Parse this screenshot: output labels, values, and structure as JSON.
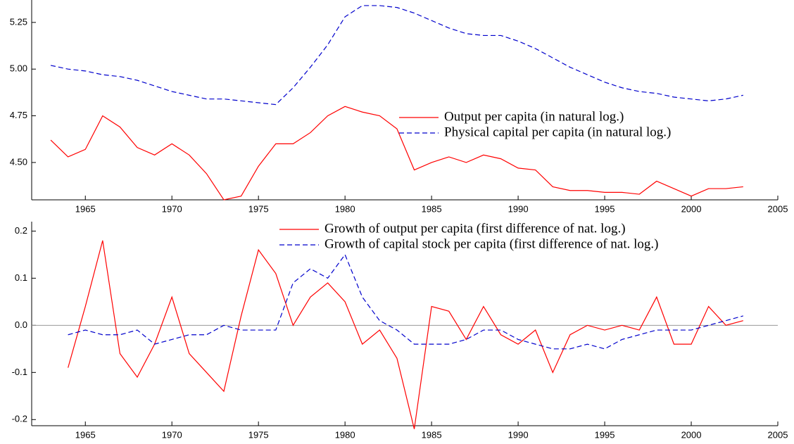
{
  "chart_data": [
    {
      "type": "line",
      "x": [
        1963,
        1964,
        1965,
        1966,
        1967,
        1968,
        1969,
        1970,
        1971,
        1972,
        1973,
        1974,
        1975,
        1976,
        1977,
        1978,
        1979,
        1980,
        1981,
        1982,
        1983,
        1984,
        1985,
        1986,
        1987,
        1988,
        1989,
        1990,
        1991,
        1992,
        1993,
        1994,
        1995,
        1996,
        1997,
        1998,
        1999,
        2000,
        2001,
        2002,
        2003
      ],
      "series": [
        {
          "name": "Output per capita (in natural log.)",
          "color": "#ff0000",
          "dashed": false,
          "values": [
            4.62,
            4.53,
            4.57,
            4.75,
            4.69,
            4.58,
            4.54,
            4.6,
            4.54,
            4.44,
            4.3,
            4.32,
            4.48,
            4.6,
            4.6,
            4.66,
            4.75,
            4.8,
            4.77,
            4.75,
            4.68,
            4.46,
            4.5,
            4.53,
            4.5,
            4.54,
            4.52,
            4.47,
            4.46,
            4.37,
            4.35,
            4.35,
            4.34,
            4.34,
            4.33,
            4.4,
            4.36,
            4.32,
            4.36,
            4.36,
            4.37
          ]
        },
        {
          "name": "Physical capital per capita (in natural log.)",
          "color": "#0000cc",
          "dashed": true,
          "values": [
            5.02,
            5.0,
            4.99,
            4.97,
            4.96,
            4.94,
            4.91,
            4.88,
            4.86,
            4.84,
            4.84,
            4.83,
            4.82,
            4.81,
            4.9,
            5.01,
            5.13,
            5.28,
            5.34,
            5.34,
            5.33,
            5.3,
            5.26,
            5.22,
            5.19,
            5.18,
            5.18,
            5.15,
            5.11,
            5.06,
            5.01,
            4.97,
            4.93,
            4.9,
            4.88,
            4.87,
            4.85,
            4.84,
            4.83,
            4.84,
            4.86
          ]
        }
      ],
      "xlim": [
        1961.9,
        2005
      ],
      "xticks": [
        1965,
        1970,
        1975,
        1980,
        1985,
        1990,
        1995,
        2000,
        2005
      ],
      "ylim": [
        4.3,
        5.37
      ],
      "yticks": [
        {
          "value": 4.5,
          "label": "4.50"
        },
        4.75,
        {
          "value": 5,
          "label": "5.00"
        },
        5.25
      ],
      "legend": "center right",
      "zero_line": false
    },
    {
      "type": "line",
      "x": [
        1964,
        1965,
        1966,
        1967,
        1968,
        1969,
        1970,
        1971,
        1972,
        1973,
        1974,
        1975,
        1976,
        1977,
        1978,
        1979,
        1980,
        1981,
        1982,
        1983,
        1984,
        1985,
        1986,
        1987,
        1988,
        1989,
        1990,
        1991,
        1992,
        1993,
        1994,
        1995,
        1996,
        1997,
        1998,
        1999,
        2000,
        2001,
        2002,
        2003
      ],
      "series": [
        {
          "name": "Growth of output per capita (first difference of nat. log.)",
          "color": "#ff0000",
          "dashed": false,
          "values": [
            -0.09,
            0.04,
            0.18,
            -0.06,
            -0.11,
            -0.04,
            0.06,
            -0.06,
            -0.1,
            -0.14,
            0.02,
            0.16,
            0.11,
            0.0,
            0.06,
            0.09,
            0.05,
            -0.04,
            -0.01,
            -0.07,
            -0.22,
            0.04,
            0.03,
            -0.03,
            0.04,
            -0.02,
            -0.04,
            -0.01,
            -0.1,
            -0.02,
            0.0,
            -0.01,
            0.0,
            -0.01,
            0.06,
            -0.04,
            -0.04,
            0.04,
            0.0,
            0.01
          ]
        },
        {
          "name": "Growth of capital stock per capita (first difference of nat. log.)",
          "color": "#0000cc",
          "dashed": true,
          "values": [
            -0.02,
            -0.01,
            -0.02,
            -0.02,
            -0.01,
            -0.04,
            -0.03,
            -0.02,
            -0.02,
            0.0,
            -0.01,
            -0.01,
            -0.01,
            0.09,
            0.12,
            0.1,
            0.15,
            0.06,
            0.01,
            -0.01,
            -0.04,
            -0.04,
            -0.04,
            -0.03,
            -0.01,
            -0.01,
            -0.03,
            -0.04,
            -0.05,
            -0.05,
            -0.04,
            -0.05,
            -0.03,
            -0.02,
            -0.01,
            -0.01,
            -0.01,
            0.0,
            0.01,
            0.02
          ]
        }
      ],
      "xlim": [
        1961.9,
        2005
      ],
      "xticks": [
        1965,
        1970,
        1975,
        1980,
        1985,
        1990,
        1995,
        2000,
        2005
      ],
      "ylim": [
        -0.213,
        0.22
      ],
      "yticks": [
        -0.2,
        -0.1,
        {
          "value": 0,
          "label": "0.0"
        },
        0.1,
        0.2
      ],
      "legend": "top right",
      "zero_line": true
    }
  ]
}
